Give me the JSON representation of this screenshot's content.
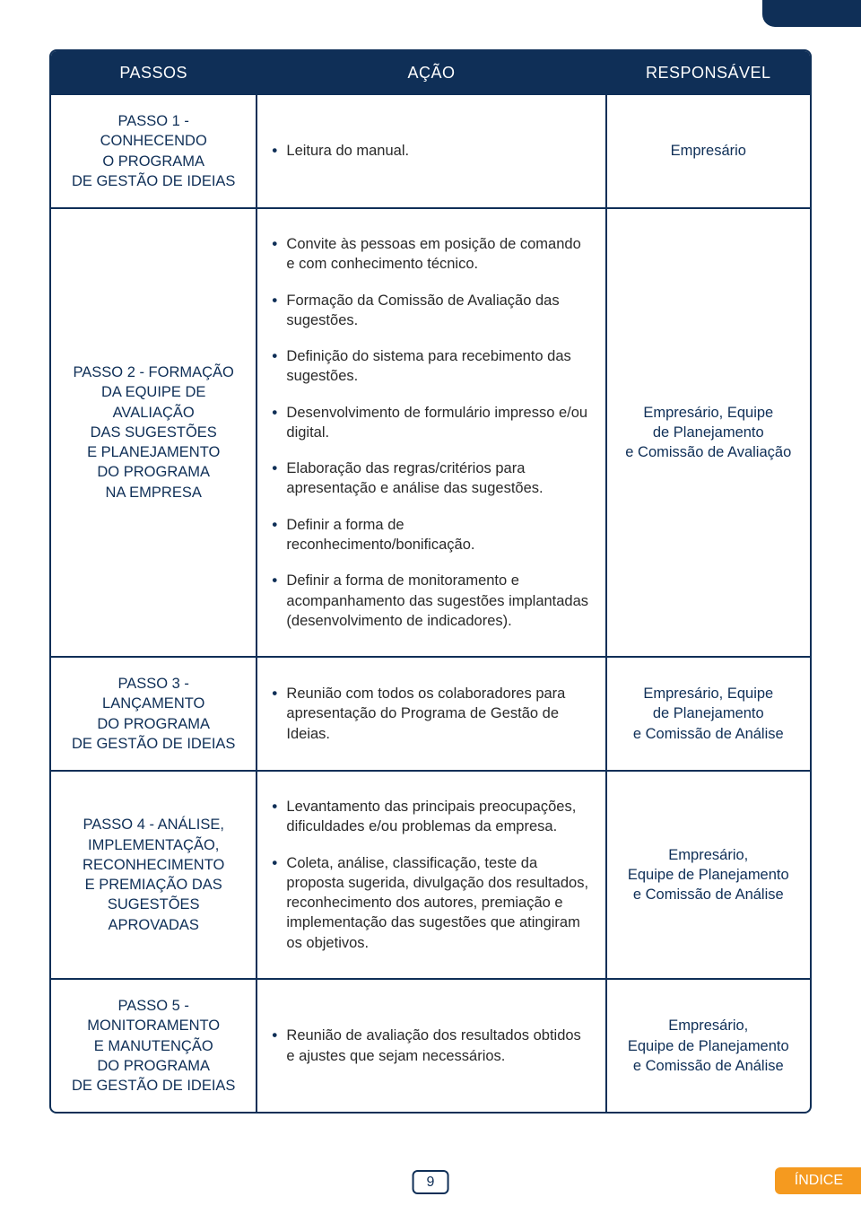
{
  "colors": {
    "header_bg": "#0f2f57",
    "border": "#0f2f57",
    "text_dark": "#2a2a2a",
    "text_blue": "#0f2f57",
    "accent_orange": "#f59a1f",
    "page_bg": "#ffffff"
  },
  "table": {
    "headers": {
      "passos": "PASSOS",
      "acao": "AÇÃO",
      "responsavel": "RESPONSÁVEL"
    },
    "rows": [
      {
        "step": "PASSO 1 - CONHECENDO\nO PROGRAMA\nDE GESTÃO DE IDEIAS",
        "actions": [
          "Leitura do manual."
        ],
        "responsible": "Empresário"
      },
      {
        "step": "PASSO 2 - FORMAÇÃO\nDA EQUIPE DE AVALIAÇÃO\nDAS SUGESTÕES\nE PLANEJAMENTO\nDO PROGRAMA\nNA EMPRESA",
        "actions": [
          "Convite às pessoas em posição de comando e com conhecimento técnico.",
          "Formação da Comissão de Avaliação das sugestões.",
          "Definição do sistema para recebimento das sugestões.",
          "Desenvolvimento de formulário impresso e/ou digital.",
          "Elaboração das regras/critérios para apresentação e análise das sugestões.",
          "Definir a forma de reconhecimento/bonificação.",
          "Definir a forma de monitoramento e acompanhamento das sugestões implantadas (desenvolvimento de indicadores)."
        ],
        "responsible": "Empresário, Equipe\nde Planejamento\ne Comissão de Avaliação"
      },
      {
        "step": "PASSO 3 - LANÇAMENTO\nDO PROGRAMA\nDE GESTÃO DE IDEIAS",
        "actions": [
          "Reunião com todos os colaboradores para apresentação do Programa de Gestão de Ideias."
        ],
        "responsible": "Empresário, Equipe\nde Planejamento\ne Comissão de Análise"
      },
      {
        "step": "PASSO 4 - ANÁLISE,\nIMPLEMENTAÇÃO,\nRECONHECIMENTO\nE PREMIAÇÃO DAS\nSUGESTÕES APROVADAS",
        "actions": [
          "Levantamento das principais preocupações, dificuldades e/ou problemas da empresa.",
          "Coleta, análise, classificação, teste da proposta sugerida, divulgação dos resultados, reconhecimento dos autores, premiação e implementação das sugestões que atingiram os objetivos."
        ],
        "responsible": "Empresário,\nEquipe de Planejamento\ne Comissão de Análise"
      },
      {
        "step": "PASSO 5 - MONITORAMENTO\nE MANUTENÇÃO\nDO PROGRAMA\nDE GESTÃO DE IDEIAS",
        "actions": [
          "Reunião de avaliação dos resultados obtidos e ajustes que sejam necessários."
        ],
        "responsible": "Empresário,\nEquipe de Planejamento\ne Comissão de Análise"
      }
    ]
  },
  "footer": {
    "page_number": "9",
    "index_label": "ÍNDICE"
  }
}
